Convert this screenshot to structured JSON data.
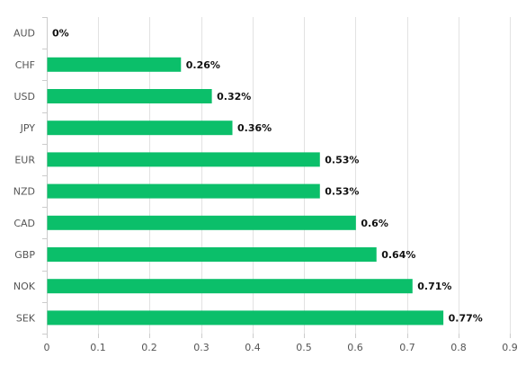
{
  "chart_data": {
    "type": "bar",
    "orientation": "horizontal",
    "title": "",
    "xlabel": "",
    "ylabel": "",
    "categories": [
      "AUD",
      "CHF",
      "USD",
      "JPY",
      "EUR",
      "NZD",
      "CAD",
      "GBP",
      "NOK",
      "SEK"
    ],
    "values": [
      0,
      0.26,
      0.32,
      0.36,
      0.53,
      0.53,
      0.6,
      0.64,
      0.71,
      0.77
    ],
    "data_labels": [
      "0%",
      "0.26%",
      "0.32%",
      "0.36%",
      "0.53%",
      "0.53%",
      "0.6%",
      "0.64%",
      "0.71%",
      "0.77%"
    ],
    "xlim": [
      0,
      0.9
    ],
    "x_ticks": [
      0,
      0.1,
      0.2,
      0.3,
      0.4,
      0.5,
      0.6,
      0.7,
      0.8,
      0.9
    ],
    "x_tick_labels": [
      "0",
      "0.1",
      "0.2",
      "0.3",
      "0.4",
      "0.5",
      "0.6",
      "0.7",
      "0.8",
      "0.9"
    ],
    "grid": "vertical",
    "legend": "none",
    "colors": {
      "bar": "#0bbf6a",
      "grid": "#e2e2e2",
      "axis": "#cccccc",
      "label": "#555555",
      "data_label": "#111111"
    }
  }
}
